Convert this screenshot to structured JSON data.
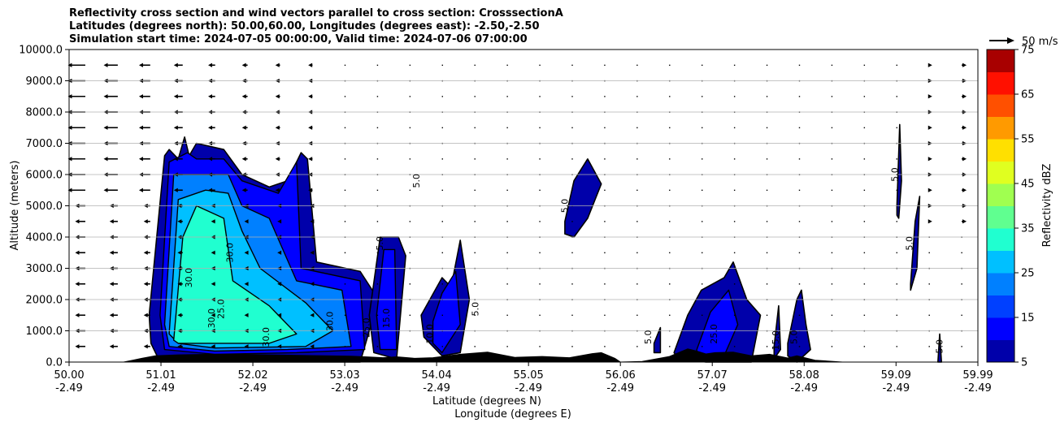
{
  "chart_data": {
    "type": "contourf",
    "title_lines": [
      "Reflectivity cross section and wind vectors parallel to cross section: CrosssectionA",
      "Latitudes (degrees north): 50.00,60.00, Longitudes (degrees east): -2.50,-2.50",
      "Simulation start time: 2024-07-05 00:00:00, Valid time: 2024-07-06 07:00:00"
    ],
    "xlabel_lines": [
      "Latitude (degrees N)",
      "Longitude (degrees E)"
    ],
    "ylabel": "Altitude (meters)",
    "x_ticks": [
      {
        "lat": "50.00",
        "lon": "-2.49",
        "value": 50.0
      },
      {
        "lat": "51.01",
        "lon": "-2.49",
        "value": 51.01
      },
      {
        "lat": "52.02",
        "lon": "-2.49",
        "value": 52.02
      },
      {
        "lat": "53.03",
        "lon": "-2.49",
        "value": 53.03
      },
      {
        "lat": "54.04",
        "lon": "-2.49",
        "value": 54.04
      },
      {
        "lat": "55.05",
        "lon": "-2.49",
        "value": 55.05
      },
      {
        "lat": "56.06",
        "lon": "-2.49",
        "value": 56.06
      },
      {
        "lat": "57.07",
        "lon": "-2.49",
        "value": 57.07
      },
      {
        "lat": "58.08",
        "lon": "-2.49",
        "value": 58.08
      },
      {
        "lat": "59.09",
        "lon": "-2.49",
        "value": 59.09
      },
      {
        "lat": "59.99",
        "lon": "-2.49",
        "value": 59.99
      }
    ],
    "xlim": [
      50.0,
      59.99
    ],
    "y_ticks": [
      "0.0",
      "1000.0",
      "2000.0",
      "3000.0",
      "4000.0",
      "5000.0",
      "6000.0",
      "7000.0",
      "8000.0",
      "9000.0",
      "10000.0"
    ],
    "ylim": [
      0,
      10000
    ],
    "grid": "horizontal",
    "colorbar": {
      "label": "Reflectivity dBZ",
      "levels": [
        5,
        10,
        15,
        20,
        25,
        30,
        35,
        40,
        45,
        50,
        55,
        60,
        65,
        70,
        75
      ],
      "tick_labels": [
        "5",
        "15",
        "25",
        "35",
        "45",
        "55",
        "65",
        "75"
      ],
      "colors": [
        "#0000aa",
        "#0000ff",
        "#0040ff",
        "#0080ff",
        "#00c0ff",
        "#20ffd0",
        "#60ff90",
        "#a0ff50",
        "#e0ff20",
        "#ffe000",
        "#ff9a00",
        "#ff5000",
        "#ff1000",
        "#a80000"
      ]
    },
    "quiver_key": {
      "label": "50 m/s",
      "speed_ms": 50
    },
    "terrain_color": "#000000",
    "cells": [
      {
        "x": [
          50.88,
          51.05,
          51.1,
          51.2,
          51.27,
          51.32,
          51.4,
          51.7,
          51.9,
          52.2,
          52.4,
          52.55,
          52.62,
          52.72,
          53.2,
          53.4,
          53.2,
          52.5,
          51.8,
          51.0,
          50.9
        ],
        "y": [
          1500,
          6600,
          6800,
          6500,
          7200,
          6600,
          7000,
          6800,
          6000,
          5600,
          5800,
          6700,
          6500,
          3200,
          2900,
          2000,
          0,
          0,
          0,
          0,
          600
        ],
        "levels": [
          {
            "dbz": 10,
            "x": [
              51.0,
              51.1,
              51.3,
              51.4,
              51.7,
              51.9,
              52.3,
              52.5,
              52.55,
              53.2,
              53.25,
              52.5,
              51.6,
              51.05
            ],
            "y": [
              1500,
              6400,
              6700,
              6500,
              6500,
              5800,
              5400,
              6400,
              3000,
              2600,
              400,
              300,
              250,
              400
            ]
          },
          {
            "dbz": 20,
            "x": [
              51.05,
              51.15,
              51.35,
              51.75,
              51.9,
              52.2,
              52.5,
              53.0,
              53.1,
              52.4,
              51.6,
              51.1
            ],
            "y": [
              1200,
              6000,
              6000,
              6000,
              5000,
              4600,
              2600,
              2300,
              500,
              400,
              350,
              500
            ]
          },
          {
            "dbz": 25,
            "x": [
              51.1,
              51.2,
              51.5,
              51.75,
              51.9,
              52.1,
              52.6,
              52.9,
              52.6,
              51.6,
              51.2
            ],
            "y": [
              900,
              5200,
              5500,
              5400,
              4200,
              3000,
              1900,
              1000,
              500,
              450,
              600
            ]
          },
          {
            "dbz": 30,
            "x": [
              51.15,
              51.25,
              51.4,
              51.7,
              51.8,
              52.2,
              52.5,
              52.2,
              51.6,
              51.2
            ],
            "y": [
              700,
              4000,
              5000,
              4600,
              2600,
              1800,
              900,
              600,
              600,
              600
            ]
          }
        ]
      },
      {
        "x": [
          53.3,
          53.42,
          53.62,
          53.7,
          53.6,
          53.35
        ],
        "y": [
          1500,
          4000,
          4000,
          3400,
          100,
          300
        ],
        "levels": [
          {
            "dbz": 10,
            "x": [
              53.38,
              53.46,
              53.58,
              53.6,
              53.42
            ],
            "y": [
              1500,
              3600,
              3600,
              400,
              400
            ]
          }
        ]
      },
      {
        "x": [
          53.87,
          54.1,
          54.2,
          54.3,
          54.4,
          54.3,
          54.1,
          53.9
        ],
        "y": [
          1500,
          2700,
          2400,
          3900,
          2000,
          300,
          200,
          800
        ],
        "levels": [
          {
            "dbz": 10,
            "x": [
              54.0,
              54.1,
              54.25,
              54.3,
              54.1,
              54.0
            ],
            "y": [
              1300,
              2200,
              2900,
              1200,
              300,
              600
            ]
          }
        ]
      },
      {
        "x": [
          55.45,
          55.55,
          55.7,
          55.85,
          55.7,
          55.55,
          55.45
        ],
        "y": [
          4500,
          5800,
          6500,
          5700,
          4600,
          4000,
          4100
        ],
        "levels": []
      },
      {
        "x": [
          56.43,
          56.5,
          56.5,
          56.43
        ],
        "y": [
          600,
          1100,
          300,
          300
        ],
        "levels": []
      },
      {
        "x": [
          56.65,
          56.8,
          56.95,
          57.2,
          57.3,
          57.45,
          57.6,
          57.5,
          57.3,
          57.0,
          56.7
        ],
        "y": [
          300,
          1500,
          2300,
          2700,
          3200,
          2000,
          1500,
          0,
          0,
          0,
          100
        ],
        "levels": [
          {
            "dbz": 10,
            "x": [
              56.9,
              57.05,
              57.25,
              57.35,
              57.2,
              56.9
            ],
            "y": [
              400,
              1600,
              2300,
              1200,
              200,
              200
            ]
          }
        ]
      },
      {
        "x": [
          57.75,
          57.8,
          57.82,
          57.75
        ],
        "y": [
          500,
          1800,
          400,
          100
        ],
        "levels": []
      },
      {
        "x": [
          57.9,
          58.0,
          58.05,
          58.1,
          58.15,
          58.0,
          57.9
        ],
        "y": [
          600,
          2000,
          2300,
          1200,
          400,
          0,
          200
        ],
        "levels": []
      },
      {
        "x": [
          59.1,
          59.13,
          59.15,
          59.12,
          59.1
        ],
        "y": [
          5000,
          7600,
          5800,
          4600,
          4700
        ],
        "levels": []
      },
      {
        "x": [
          59.25,
          59.3,
          59.35,
          59.32,
          59.25
        ],
        "y": [
          2500,
          4500,
          5300,
          3000,
          2300
        ],
        "levels": []
      },
      {
        "x": [
          59.55,
          59.57,
          59.59,
          59.57
        ],
        "y": [
          0,
          900,
          0,
          0
        ],
        "levels": []
      }
    ],
    "contour_labels": [
      {
        "x": 53.85,
        "y": 5800,
        "text": "5.0"
      },
      {
        "x": 55.48,
        "y": 5000,
        "text": "5.0"
      },
      {
        "x": 59.11,
        "y": 6000,
        "text": "5.0"
      },
      {
        "x": 59.27,
        "y": 3800,
        "text": "5.0"
      },
      {
        "x": 51.35,
        "y": 2700,
        "text": "30.0"
      },
      {
        "x": 51.8,
        "y": 3500,
        "text": "30.0"
      },
      {
        "x": 51.7,
        "y": 1700,
        "text": "25.0"
      },
      {
        "x": 51.6,
        "y": 1400,
        "text": "30.0"
      },
      {
        "x": 52.2,
        "y": 800,
        "text": "30.0"
      },
      {
        "x": 52.9,
        "y": 1300,
        "text": "30.0"
      },
      {
        "x": 53.3,
        "y": 1100,
        "text": "25.0"
      },
      {
        "x": 53.45,
        "y": 3800,
        "text": "5.0"
      },
      {
        "x": 53.52,
        "y": 1400,
        "text": "15.0"
      },
      {
        "x": 54.0,
        "y": 900,
        "text": "10.0"
      },
      {
        "x": 54.5,
        "y": 1700,
        "text": "5.0"
      },
      {
        "x": 57.12,
        "y": 900,
        "text": "25.0"
      },
      {
        "x": 56.4,
        "y": 800,
        "text": "5.0"
      },
      {
        "x": 57.8,
        "y": 700,
        "text": "15.0"
      },
      {
        "x": 58.0,
        "y": 800,
        "text": "5.0"
      },
      {
        "x": 59.6,
        "y": 500,
        "text": "5.0"
      }
    ],
    "terrain": {
      "x": [
        50.6,
        50.7,
        50.8,
        50.95,
        51.2,
        51.6,
        52.0,
        52.4,
        52.8,
        53.1,
        53.3,
        53.45,
        53.6,
        53.8,
        54.0,
        54.3,
        54.6,
        54.9,
        55.2,
        55.5,
        55.75,
        55.85,
        56.0,
        56.06,
        56.3,
        56.6,
        56.8,
        56.9,
        57.0,
        57.1,
        57.3,
        57.5,
        57.7,
        57.9,
        58.0,
        58.2,
        58.5
      ],
      "y": [
        0,
        60,
        120,
        200,
        230,
        250,
        240,
        220,
        200,
        190,
        160,
        140,
        170,
        120,
        140,
        250,
        320,
        150,
        180,
        140,
        270,
        300,
        120,
        0,
        20,
        180,
        420,
        350,
        260,
        300,
        320,
        200,
        250,
        130,
        200,
        60,
        0
      ]
    }
  }
}
